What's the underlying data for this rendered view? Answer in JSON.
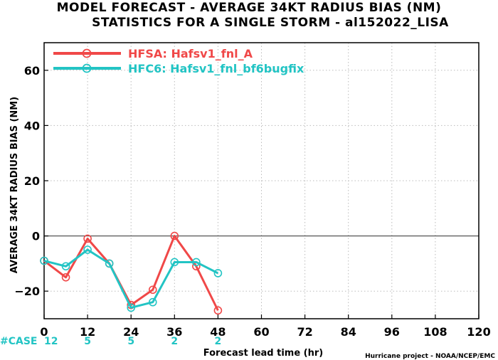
{
  "chart_data": {
    "type": "line",
    "title": "MODEL FORECAST - AVERAGE 34KT RADIUS BIAS (NM)",
    "subtitle": "STATISTICS FOR A SINGLE STORM - al152022_LISA",
    "xlabel": "Forecast lead time (hr)",
    "ylabel": "AVERAGE 34KT RADIUS BIAS (NM)",
    "xlim": [
      0,
      120
    ],
    "ylim": [
      -30,
      70
    ],
    "xticks": [
      0,
      12,
      24,
      36,
      48,
      60,
      72,
      84,
      96,
      108,
      120
    ],
    "yticks": [
      -20,
      0,
      20,
      40,
      60
    ],
    "grid": true,
    "legend_position": "top-left",
    "series": [
      {
        "name": "HFSA: Hafsv1_fnl_A",
        "color": "#f04848",
        "x": [
          0,
          6,
          12,
          18,
          24,
          30,
          36,
          42,
          48
        ],
        "y": [
          -9,
          -15,
          -1,
          -10,
          -25,
          -19.5,
          0,
          -11,
          -27
        ]
      },
      {
        "name": "HFC6: Hafsv1_fnl_bf6bugfix",
        "color": "#22c4c4",
        "x": [
          0,
          6,
          12,
          18,
          24,
          30,
          36,
          42,
          48
        ],
        "y": [
          -9,
          -11,
          -5,
          -10,
          -26,
          -24,
          -9.5,
          -9.5,
          -13.5
        ]
      }
    ],
    "case_counts": {
      "label": "#CASE",
      "x": [
        0,
        12,
        24,
        36,
        48
      ],
      "values": [
        "12",
        "5",
        "5",
        "2",
        "2"
      ]
    },
    "credit": "Hurricane project - NOAA/NCEP/EMC"
  }
}
